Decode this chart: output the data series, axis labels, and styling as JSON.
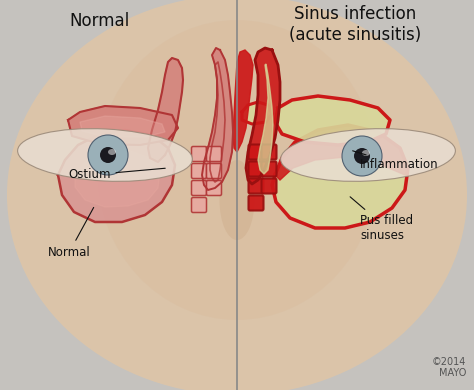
{
  "title_left": "Normal",
  "title_right": "Sinus infection\n(acute sinusitis)",
  "label_ostium": "Ostium",
  "label_normal": "Normal",
  "label_inflammation": "Inflammation",
  "label_pus": "Pus filled\nsinuses",
  "copyright": "©2014\nMAYO",
  "bg_gray": "#c5c2be",
  "skin_face": "#ddc5a8",
  "skin_mid": "#cdb090",
  "sinus_pink_fill": "#d4807a",
  "sinus_pink_light": "#e8a8a0",
  "sinus_outline": "#b03535",
  "inflamed_red": "#cc1818",
  "inflamed_dark": "#991010",
  "pus_yellow": "#d8d89a",
  "pus_light": "#e8e8b0",
  "divider_color": "#888888",
  "text_color": "#111111",
  "title_fontsize": 12,
  "label_fontsize": 8.5,
  "copy_fontsize": 7
}
